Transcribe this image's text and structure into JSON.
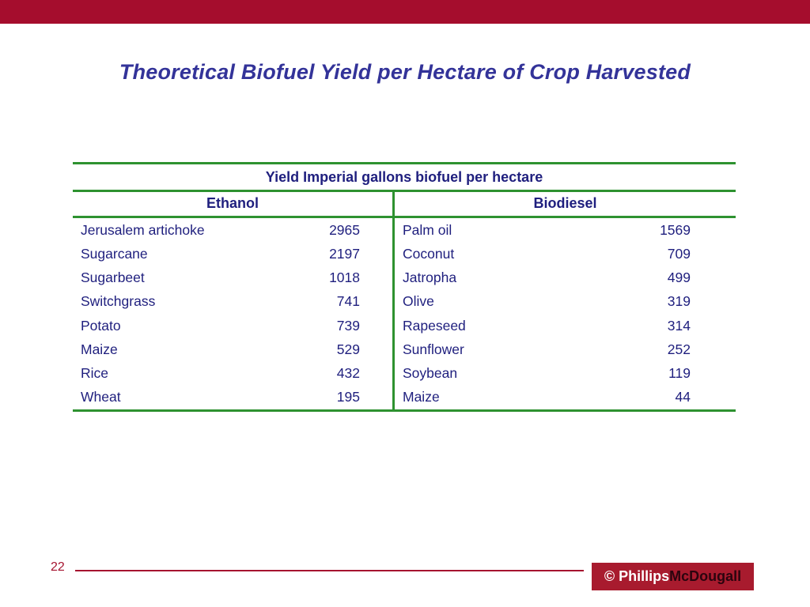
{
  "page": {
    "title": "Theoretical Biofuel Yield per Hectare of Crop Harvested",
    "page_number": "22"
  },
  "footer": {
    "logo_copyright": "© Phillips",
    "logo_brand": "McDougall"
  },
  "table": {
    "title": "Yield Imperial gallons biofuel per hectare",
    "ethanol": {
      "label": "Ethanol",
      "rows": [
        {
          "crop": "Jerusalem artichoke",
          "value": "2965"
        },
        {
          "crop": "Sugarcane",
          "value": "2197"
        },
        {
          "crop": "Sugarbeet",
          "value": "1018"
        },
        {
          "crop": "Switchgrass",
          "value": "741"
        },
        {
          "crop": "Potato",
          "value": "739"
        },
        {
          "crop": "Maize",
          "value": "529"
        },
        {
          "crop": "Rice",
          "value": "432"
        },
        {
          "crop": "Wheat",
          "value": "195"
        }
      ]
    },
    "biodiesel": {
      "label": "Biodiesel",
      "rows": [
        {
          "crop": "Palm oil",
          "value": "1569"
        },
        {
          "crop": "Coconut",
          "value": "709"
        },
        {
          "crop": "Jatropha",
          "value": "499"
        },
        {
          "crop": "Olive",
          "value": "319"
        },
        {
          "crop": "Rapeseed",
          "value": "314"
        },
        {
          "crop": "Sunflower",
          "value": "252"
        },
        {
          "crop": "Soybean",
          "value": "119"
        },
        {
          "crop": "Maize",
          "value": "44"
        }
      ]
    }
  },
  "colors": {
    "top_bar_red": "#a50d2d",
    "title_blue": "#333399",
    "table_line_green": "#2e9230",
    "table_text_navy": "#1f1f7e",
    "footer_red": "#a5132f",
    "logo_background_red": "#a81b2e",
    "logo_brand_dark": "#2b040e"
  },
  "chart_data": {
    "type": "table",
    "title": "Yield Imperial gallons biofuel per hectare",
    "ylabel": "Imperial gallons biofuel per hectare",
    "series": [
      {
        "name": "Ethanol",
        "categories": [
          "Jerusalem artichoke",
          "Sugarcane",
          "Sugarbeet",
          "Switchgrass",
          "Potato",
          "Maize",
          "Rice",
          "Wheat"
        ],
        "values": [
          2965,
          2197,
          1018,
          741,
          739,
          529,
          432,
          195
        ]
      },
      {
        "name": "Biodiesel",
        "categories": [
          "Palm oil",
          "Coconut",
          "Jatropha",
          "Olive",
          "Rapeseed",
          "Sunflower",
          "Soybean",
          "Maize"
        ],
        "values": [
          1569,
          709,
          499,
          319,
          314,
          252,
          119,
          44
        ]
      }
    ]
  }
}
